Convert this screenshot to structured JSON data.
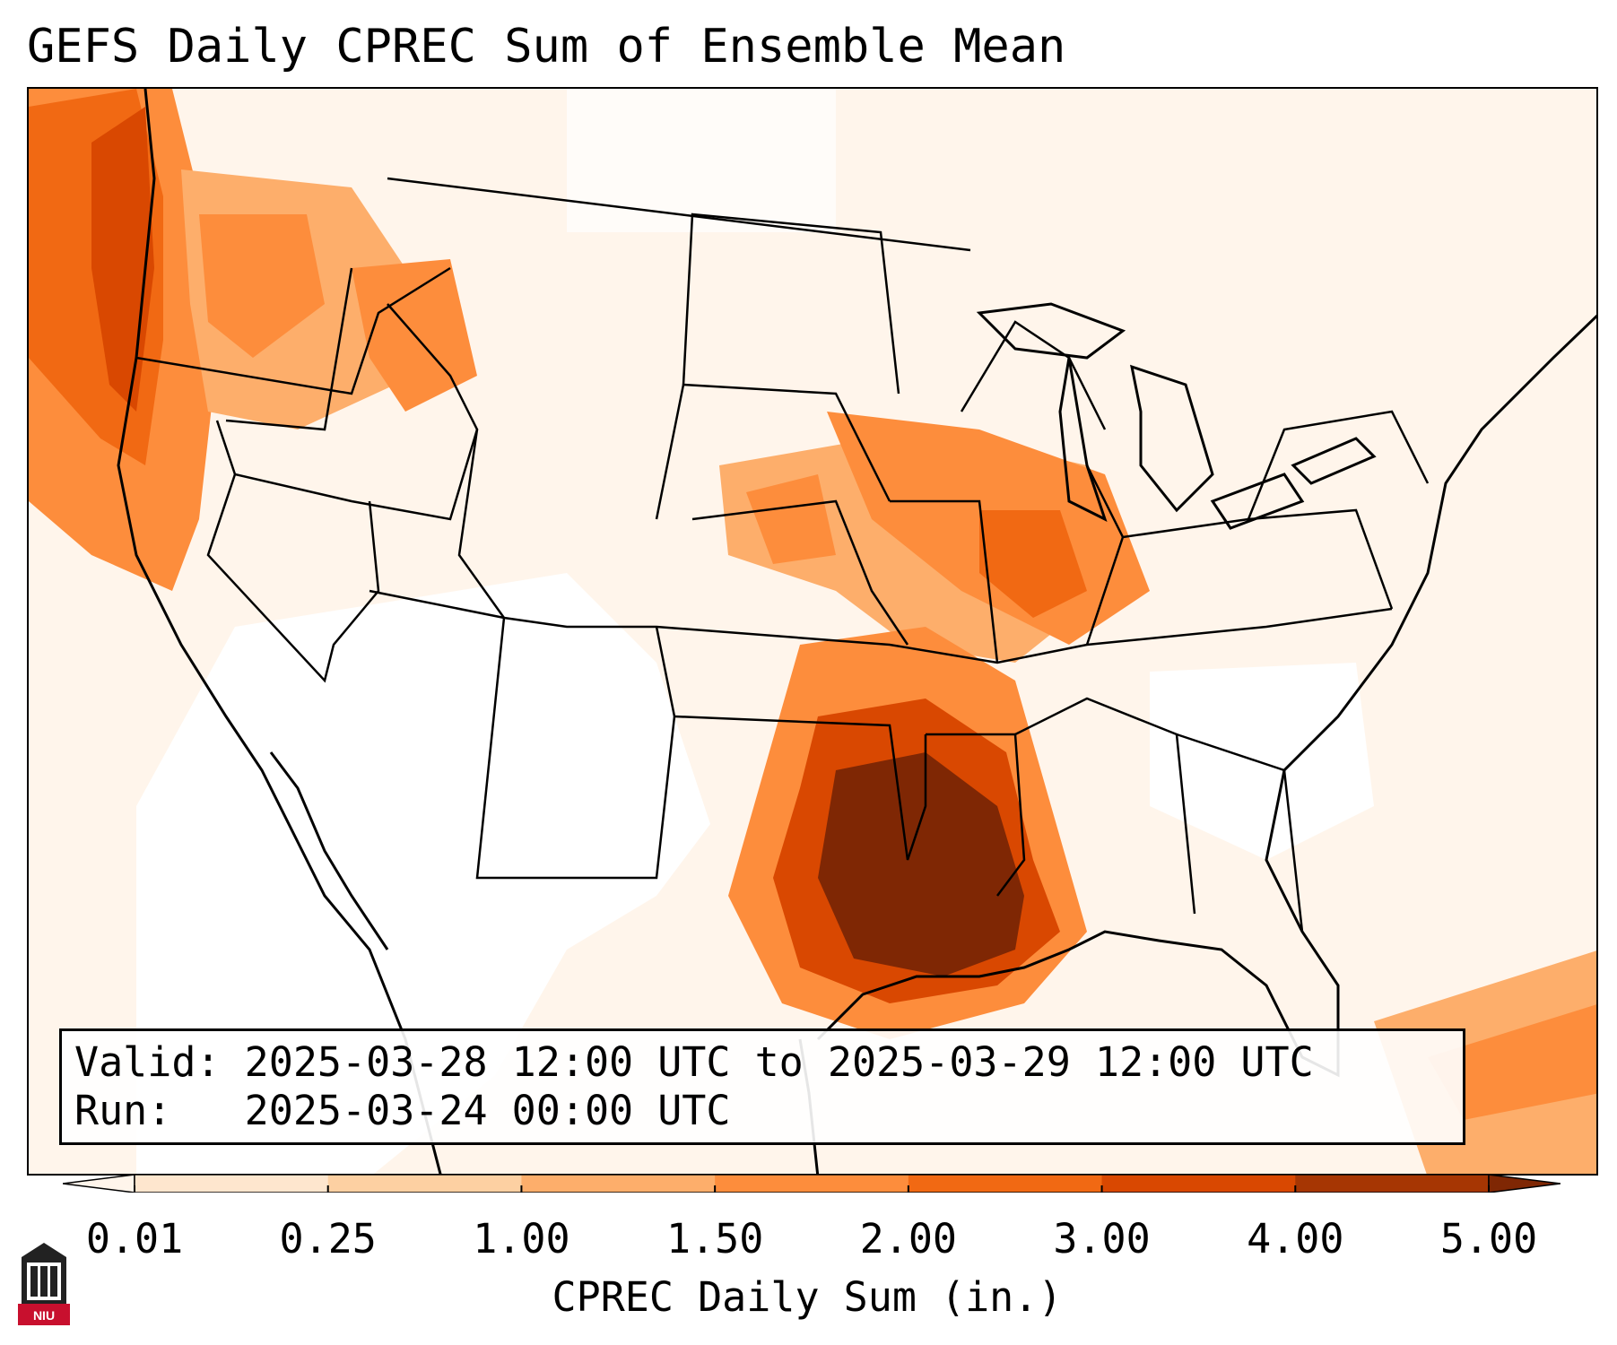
{
  "title": "GEFS Daily CPREC Sum of Ensemble Mean",
  "valid_line": "Valid: 2025-03-28 12:00 UTC to 2025-03-29 12:00 UTC",
  "run_line": "Run:   2025-03-24 00:00 UTC",
  "colorbar": {
    "label": "CPREC Daily Sum (in.)",
    "ticks": [
      "0.01",
      "0.25",
      "1.00",
      "1.50",
      "2.00",
      "3.00",
      "4.00",
      "5.00"
    ],
    "colors": [
      "#fff5eb",
      "#fee6ce",
      "#fdd0a2",
      "#fdae6b",
      "#fd8d3c",
      "#f16913",
      "#d94801",
      "#a63603",
      "#7f2704"
    ],
    "extend": "both"
  },
  "logo": {
    "text": "NIU",
    "color": "#c8102e"
  }
}
